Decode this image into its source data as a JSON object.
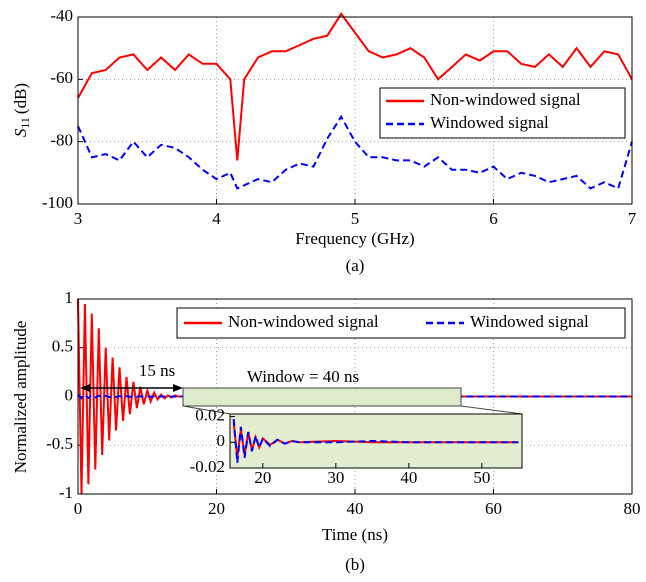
{
  "chart_data": [
    {
      "type": "line",
      "xlabel": "Frequency (GHz)",
      "ylabel_symbol": "S",
      "ylabel_subscript": "11",
      "ylabel_unit": "(dB)",
      "caption": "(a)",
      "x": [
        3.0,
        3.1,
        3.2,
        3.3,
        3.4,
        3.5,
        3.6,
        3.7,
        3.8,
        3.9,
        4.0,
        4.1,
        4.15,
        4.2,
        4.3,
        4.4,
        4.5,
        4.6,
        4.7,
        4.8,
        4.9,
        5.0,
        5.1,
        5.2,
        5.3,
        5.4,
        5.5,
        5.6,
        5.7,
        5.8,
        5.9,
        6.0,
        6.1,
        6.2,
        6.3,
        6.4,
        6.5,
        6.6,
        6.7,
        6.8,
        6.9,
        7.0
      ],
      "series": [
        {
          "name": "Non-windowed signal",
          "color": "#ff0000",
          "linestyle": "solid",
          "values": [
            -66,
            -58,
            -57,
            -53,
            -52,
            -57,
            -53,
            -57,
            -52,
            -55,
            -55,
            -60,
            -86,
            -60,
            -53,
            -51,
            -51,
            -49,
            -47,
            -46,
            -39,
            -45,
            -51,
            -53,
            -52,
            -50,
            -53,
            -60,
            -56,
            -52,
            -54,
            -51,
            -51,
            -55,
            -56,
            -52,
            -56,
            -50,
            -56,
            -51,
            -52,
            -60
          ]
        },
        {
          "name": "Windowed signal",
          "color": "#0000ff",
          "linestyle": "dashed",
          "values": [
            -75,
            -85,
            -84,
            -86,
            -80,
            -85,
            -81,
            -82,
            -85,
            -89,
            -92,
            -90,
            -95,
            -94,
            -92,
            -93,
            -89,
            -87,
            -88,
            -79,
            -72,
            -80,
            -85,
            -85,
            -86,
            -86,
            -88,
            -85,
            -89,
            -89,
            -90,
            -88,
            -92,
            -90,
            -91,
            -93,
            -92,
            -91,
            -95,
            -93,
            -95,
            -80
          ]
        }
      ],
      "xlim": [
        3,
        7
      ],
      "xticks": [
        3,
        4,
        5,
        6,
        7
      ],
      "ylim": [
        -100,
        -40
      ],
      "yticks": [
        -40,
        -60,
        -80,
        -100
      ],
      "grid": true,
      "legend": "upper right",
      "legend_layout": "vertical"
    },
    {
      "type": "line",
      "xlabel": "Time (ns)",
      "ylabel": "Normalized amplitude",
      "caption": "(b)",
      "annotations": [
        "15 ns",
        "Window = 40 ns"
      ],
      "x": [
        0,
        0.5,
        1,
        1.5,
        2,
        2.5,
        3,
        3.5,
        4,
        4.5,
        5,
        5.5,
        6,
        6.5,
        7,
        7.5,
        8,
        8.5,
        9,
        9.5,
        10,
        10.5,
        11,
        11.5,
        12,
        12.5,
        13,
        13.5,
        14,
        14.5,
        15,
        20,
        40,
        60,
        80
      ],
      "series": [
        {
          "name": "Non-windowed signal",
          "color": "#ff0000",
          "linestyle": "solid",
          "values": [
            1,
            -1,
            0.95,
            -0.9,
            0.85,
            -0.75,
            0.7,
            -0.6,
            0.5,
            -0.45,
            0.4,
            -0.35,
            0.3,
            -0.25,
            0.2,
            -0.18,
            0.15,
            -0.12,
            0.1,
            -0.08,
            0.06,
            -0.05,
            0.04,
            -0.03,
            0.02,
            -0.02,
            0.01,
            -0.01,
            0.01,
            0,
            0,
            0,
            0,
            0,
            0
          ]
        },
        {
          "name": "Windowed signal",
          "color": "#0000ff",
          "linestyle": "dashed",
          "values": [
            0.02,
            -0.02,
            0.015,
            -0.015,
            0.01,
            -0.01,
            0.008,
            -0.008,
            0.006,
            -0.006,
            0.005,
            -0.005,
            0.004,
            -0.004,
            0.003,
            -0.003,
            0.002,
            -0.002,
            0.002,
            -0.002,
            0.001,
            -0.001,
            0.001,
            -0.001,
            0,
            0,
            0,
            0,
            0,
            0,
            0,
            0,
            0,
            0,
            0
          ]
        }
      ],
      "xlim": [
        0,
        80
      ],
      "xticks": [
        0,
        20,
        40,
        60,
        80
      ],
      "ylim": [
        -1,
        1
      ],
      "yticks": [
        1,
        0.5,
        0,
        -0.5,
        -1
      ],
      "grid": true,
      "legend": "upper right",
      "legend_layout": "horizontal",
      "inset": {
        "type": "line",
        "background": "#e2eecf",
        "x": [
          16,
          16.5,
          17,
          17.5,
          18,
          18.5,
          19,
          19.5,
          20,
          21,
          22,
          23,
          24,
          25,
          30,
          35,
          40,
          45,
          50,
          55
        ],
        "series": [
          {
            "name": "Non-windowed signal",
            "color": "#ff0000",
            "linestyle": "solid",
            "values": [
              0.015,
              -0.012,
              0.01,
              -0.01,
              0.008,
              -0.006,
              0.004,
              -0.004,
              0.003,
              -0.002,
              0.002,
              -0.001,
              0.001,
              0,
              0.001,
              0,
              0,
              0,
              0,
              0
            ]
          },
          {
            "name": "Windowed signal",
            "color": "#0000ff",
            "linestyle": "dashed",
            "values": [
              0.018,
              -0.016,
              0.012,
              -0.012,
              0.008,
              -0.007,
              0.005,
              -0.004,
              0.003,
              -0.003,
              0.002,
              -0.001,
              0.001,
              0,
              0,
              0.001,
              0,
              0,
              0,
              0
            ]
          }
        ],
        "xlim": [
          15.5,
          55.5
        ],
        "xticks": [
          20,
          30,
          40,
          50
        ],
        "ylim": [
          -0.02,
          0.022
        ],
        "yticks": [
          0.02,
          0,
          -0.02
        ],
        "grid": false
      }
    }
  ]
}
